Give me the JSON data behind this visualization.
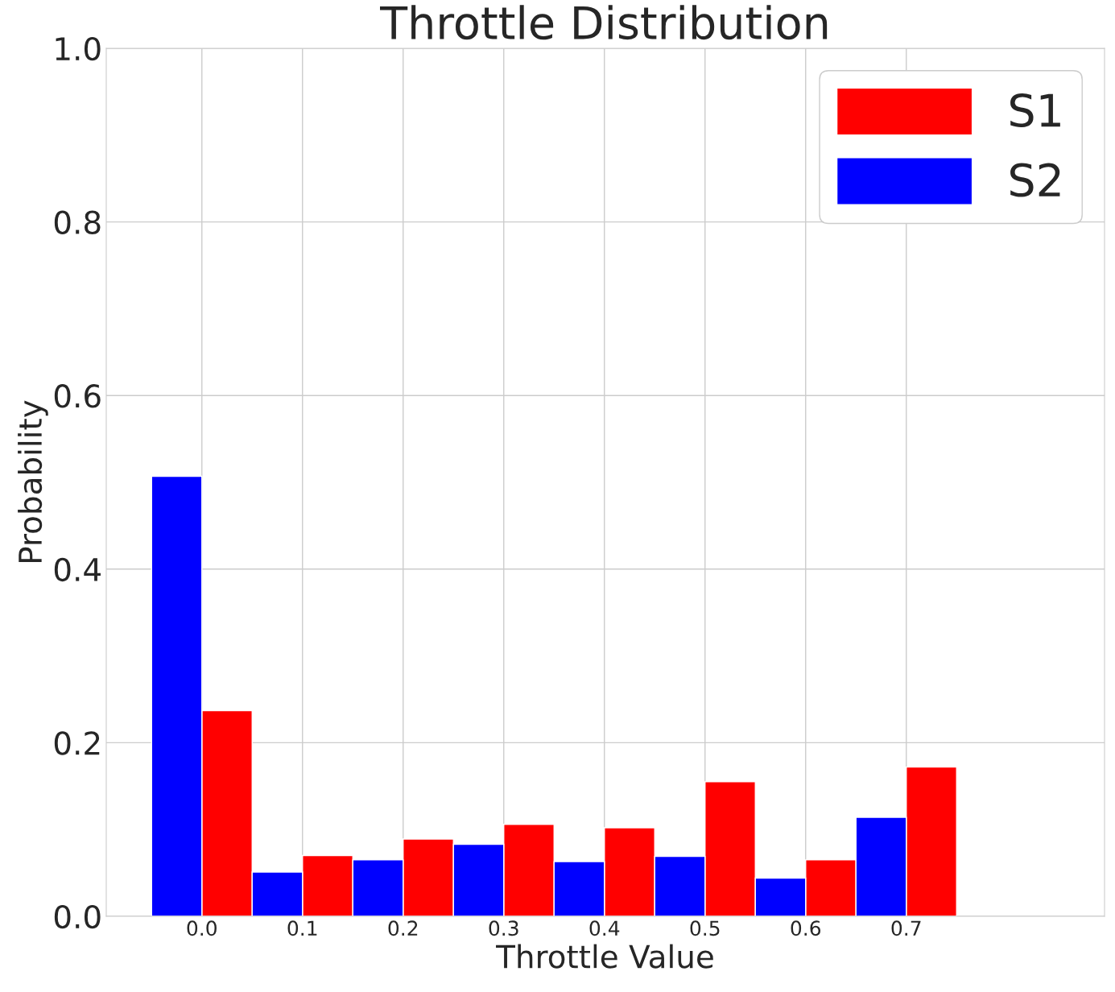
{
  "chart_data": {
    "type": "bar",
    "title": "Throttle Distribution",
    "xlabel": "Throttle Value",
    "ylabel": "Probability",
    "series": [
      {
        "name": "S1",
        "color": "#ff0000",
        "x": [
          0.025,
          0.125,
          0.225,
          0.325,
          0.425,
          0.525,
          0.625,
          0.725
        ],
        "values": [
          0.237,
          0.07,
          0.089,
          0.106,
          0.102,
          0.155,
          0.065,
          0.172
        ]
      },
      {
        "name": "S2",
        "color": "#0000ff",
        "x": [
          -0.025,
          0.075,
          0.175,
          0.275,
          0.375,
          0.475,
          0.575,
          0.675
        ],
        "values": [
          0.507,
          0.051,
          0.065,
          0.083,
          0.063,
          0.069,
          0.044,
          0.114
        ]
      }
    ],
    "xlim": [
      -0.095,
      0.897
    ],
    "xticks": [
      {
        "value": 0,
        "label": "0.0"
      },
      {
        "value": 0.1,
        "label": "0.1"
      },
      {
        "value": 0.2,
        "label": "0.2"
      },
      {
        "value": 0.3,
        "label": "0.3"
      },
      {
        "value": 0.4,
        "label": "0.4"
      },
      {
        "value": 0.5,
        "label": "0.5"
      },
      {
        "value": 0.6,
        "label": "0.6"
      },
      {
        "value": 0.7,
        "label": "0.7"
      }
    ],
    "ylim": [
      0,
      1
    ],
    "yticks": [
      {
        "value": 0,
        "label": "0.0"
      },
      {
        "value": 0.2,
        "label": "0.2"
      },
      {
        "value": 0.4,
        "label": "0.4"
      },
      {
        "value": 0.6,
        "label": "0.6"
      },
      {
        "value": 0.8,
        "label": "0.8"
      },
      {
        "value": 1,
        "label": "1.0"
      }
    ],
    "grid": true,
    "legend": "top right"
  }
}
